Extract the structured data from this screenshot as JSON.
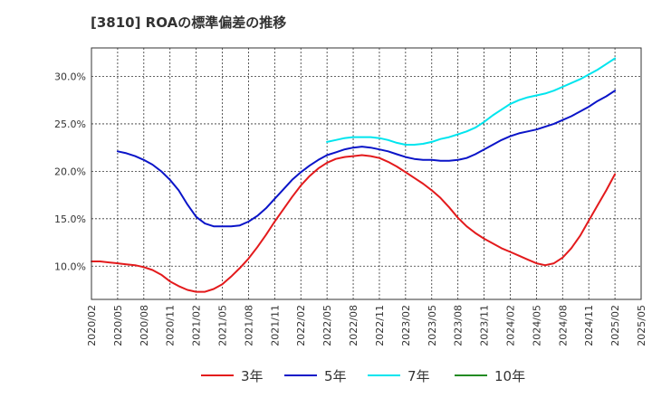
{
  "title": "[3810]  ROAの標準偏差の推移",
  "chart_data": {
    "type": "line",
    "title": "[3810]  ROAの標準偏差の推移",
    "xlabel": "",
    "ylabel": "",
    "ylim": [
      6.5,
      33.0
    ],
    "xlim": [
      "2020-02",
      "2025-05"
    ],
    "x_ticks": [
      "2020/02",
      "2020/05",
      "2020/08",
      "2020/11",
      "2021/02",
      "2021/05",
      "2021/08",
      "2021/11",
      "2022/02",
      "2022/05",
      "2022/08",
      "2022/11",
      "2023/02",
      "2023/05",
      "2023/08",
      "2023/11",
      "2024/02",
      "2024/05",
      "2024/08",
      "2024/11",
      "2025/02",
      "2025/05"
    ],
    "y_ticks": [
      "10.0%",
      "15.0%",
      "20.0%",
      "25.0%",
      "30.0%"
    ],
    "y_tick_values": [
      10,
      15,
      20,
      25,
      30
    ],
    "grid": true,
    "legend_position": "bottom",
    "series": [
      {
        "name": "3年",
        "color": "#e31a1c",
        "points": [
          [
            "2020-02",
            10.5
          ],
          [
            "2020-03",
            10.5
          ],
          [
            "2020-04",
            10.4
          ],
          [
            "2020-05",
            10.3
          ],
          [
            "2020-06",
            10.2
          ],
          [
            "2020-07",
            10.1
          ],
          [
            "2020-08",
            9.9
          ],
          [
            "2020-09",
            9.6
          ],
          [
            "2020-10",
            9.1
          ],
          [
            "2020-11",
            8.4
          ],
          [
            "2020-12",
            7.9
          ],
          [
            "2021-01",
            7.5
          ],
          [
            "2021-02",
            7.3
          ],
          [
            "2021-03",
            7.3
          ],
          [
            "2021-04",
            7.6
          ],
          [
            "2021-05",
            8.1
          ],
          [
            "2021-06",
            8.9
          ],
          [
            "2021-07",
            9.8
          ],
          [
            "2021-08",
            10.8
          ],
          [
            "2021-09",
            12.0
          ],
          [
            "2021-10",
            13.3
          ],
          [
            "2021-11",
            14.7
          ],
          [
            "2021-12",
            16.0
          ],
          [
            "2022-01",
            17.3
          ],
          [
            "2022-02",
            18.5
          ],
          [
            "2022-03",
            19.5
          ],
          [
            "2022-04",
            20.3
          ],
          [
            "2022-05",
            20.9
          ],
          [
            "2022-06",
            21.3
          ],
          [
            "2022-07",
            21.5
          ],
          [
            "2022-08",
            21.6
          ],
          [
            "2022-09",
            21.7
          ],
          [
            "2022-10",
            21.6
          ],
          [
            "2022-11",
            21.4
          ],
          [
            "2022-12",
            21.0
          ],
          [
            "2023-01",
            20.5
          ],
          [
            "2023-02",
            19.9
          ],
          [
            "2023-03",
            19.3
          ],
          [
            "2023-04",
            18.7
          ],
          [
            "2023-05",
            18.0
          ],
          [
            "2023-06",
            17.2
          ],
          [
            "2023-07",
            16.2
          ],
          [
            "2023-08",
            15.1
          ],
          [
            "2023-09",
            14.2
          ],
          [
            "2023-10",
            13.5
          ],
          [
            "2023-11",
            12.9
          ],
          [
            "2023-12",
            12.4
          ],
          [
            "2024-01",
            11.9
          ],
          [
            "2024-02",
            11.5
          ],
          [
            "2024-03",
            11.1
          ],
          [
            "2024-04",
            10.7
          ],
          [
            "2024-05",
            10.3
          ],
          [
            "2024-06",
            10.1
          ],
          [
            "2024-07",
            10.3
          ],
          [
            "2024-08",
            10.9
          ],
          [
            "2024-09",
            11.9
          ],
          [
            "2024-10",
            13.2
          ],
          [
            "2024-11",
            14.8
          ],
          [
            "2024-12",
            16.4
          ],
          [
            "2025-01",
            18.0
          ],
          [
            "2025-02",
            19.7
          ]
        ]
      },
      {
        "name": "5年",
        "color": "#0a14c8",
        "points": [
          [
            "2020-05",
            22.1
          ],
          [
            "2020-06",
            21.9
          ],
          [
            "2020-07",
            21.6
          ],
          [
            "2020-08",
            21.2
          ],
          [
            "2020-09",
            20.7
          ],
          [
            "2020-10",
            20.0
          ],
          [
            "2020-11",
            19.1
          ],
          [
            "2020-12",
            18.0
          ],
          [
            "2021-01",
            16.5
          ],
          [
            "2021-02",
            15.2
          ],
          [
            "2021-03",
            14.5
          ],
          [
            "2021-04",
            14.2
          ],
          [
            "2021-05",
            14.2
          ],
          [
            "2021-06",
            14.2
          ],
          [
            "2021-07",
            14.3
          ],
          [
            "2021-08",
            14.7
          ],
          [
            "2021-09",
            15.3
          ],
          [
            "2021-10",
            16.1
          ],
          [
            "2021-11",
            17.1
          ],
          [
            "2021-12",
            18.1
          ],
          [
            "2022-01",
            19.1
          ],
          [
            "2022-02",
            19.9
          ],
          [
            "2022-03",
            20.6
          ],
          [
            "2022-04",
            21.2
          ],
          [
            "2022-05",
            21.7
          ],
          [
            "2022-06",
            22.0
          ],
          [
            "2022-07",
            22.3
          ],
          [
            "2022-08",
            22.5
          ],
          [
            "2022-09",
            22.6
          ],
          [
            "2022-10",
            22.5
          ],
          [
            "2022-11",
            22.3
          ],
          [
            "2022-12",
            22.1
          ],
          [
            "2023-01",
            21.8
          ],
          [
            "2023-02",
            21.5
          ],
          [
            "2023-03",
            21.3
          ],
          [
            "2023-04",
            21.2
          ],
          [
            "2023-05",
            21.2
          ],
          [
            "2023-06",
            21.1
          ],
          [
            "2023-07",
            21.1
          ],
          [
            "2023-08",
            21.2
          ],
          [
            "2023-09",
            21.4
          ],
          [
            "2023-10",
            21.8
          ],
          [
            "2023-11",
            22.3
          ],
          [
            "2023-12",
            22.8
          ],
          [
            "2024-01",
            23.3
          ],
          [
            "2024-02",
            23.7
          ],
          [
            "2024-03",
            24.0
          ],
          [
            "2024-04",
            24.2
          ],
          [
            "2024-05",
            24.4
          ],
          [
            "2024-06",
            24.7
          ],
          [
            "2024-07",
            25.0
          ],
          [
            "2024-08",
            25.4
          ],
          [
            "2024-09",
            25.8
          ],
          [
            "2024-10",
            26.3
          ],
          [
            "2024-11",
            26.8
          ],
          [
            "2024-12",
            27.4
          ],
          [
            "2025-01",
            27.9
          ],
          [
            "2025-02",
            28.5
          ]
        ]
      },
      {
        "name": "7年",
        "color": "#00e5ee",
        "points": [
          [
            "2022-05",
            23.1
          ],
          [
            "2022-06",
            23.3
          ],
          [
            "2022-07",
            23.5
          ],
          [
            "2022-08",
            23.6
          ],
          [
            "2022-09",
            23.6
          ],
          [
            "2022-10",
            23.6
          ],
          [
            "2022-11",
            23.5
          ],
          [
            "2022-12",
            23.3
          ],
          [
            "2023-01",
            23.0
          ],
          [
            "2023-02",
            22.8
          ],
          [
            "2023-03",
            22.8
          ],
          [
            "2023-04",
            22.9
          ],
          [
            "2023-05",
            23.1
          ],
          [
            "2023-06",
            23.4
          ],
          [
            "2023-07",
            23.6
          ],
          [
            "2023-08",
            23.9
          ],
          [
            "2023-09",
            24.2
          ],
          [
            "2023-10",
            24.6
          ],
          [
            "2023-11",
            25.2
          ],
          [
            "2023-12",
            25.9
          ],
          [
            "2024-01",
            26.5
          ],
          [
            "2024-02",
            27.1
          ],
          [
            "2024-03",
            27.5
          ],
          [
            "2024-04",
            27.8
          ],
          [
            "2024-05",
            28.0
          ],
          [
            "2024-06",
            28.2
          ],
          [
            "2024-07",
            28.5
          ],
          [
            "2024-08",
            28.9
          ],
          [
            "2024-09",
            29.3
          ],
          [
            "2024-10",
            29.7
          ],
          [
            "2024-11",
            30.2
          ],
          [
            "2024-12",
            30.7
          ],
          [
            "2025-01",
            31.3
          ],
          [
            "2025-02",
            31.9
          ]
        ]
      },
      {
        "name": "10年",
        "color": "#228b22",
        "points": []
      }
    ]
  }
}
